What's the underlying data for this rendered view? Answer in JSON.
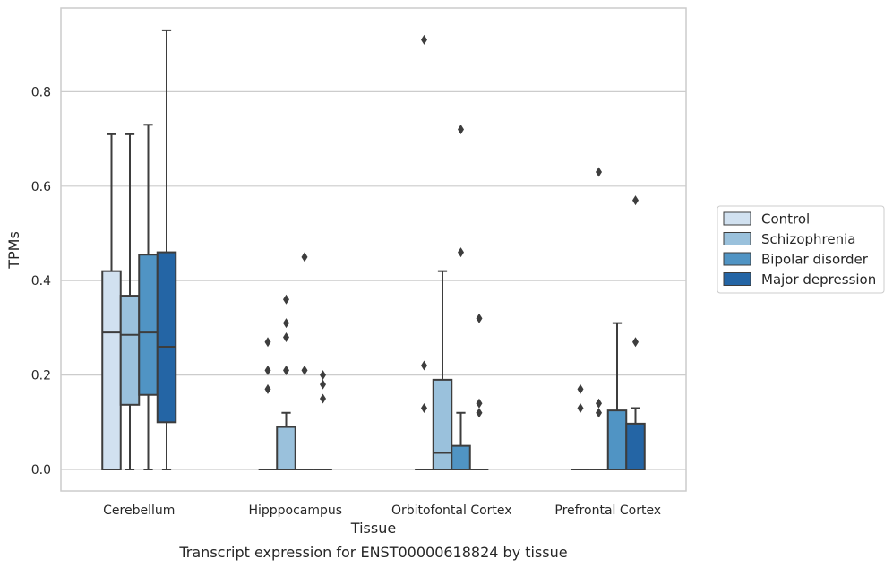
{
  "chart_data": {
    "type": "box",
    "title": "",
    "caption": "Transcript expression for ENST00000618824 by tissue",
    "xlabel": "Tissue",
    "ylabel": "TPMs",
    "ylim": [
      -0.045,
      0.98
    ],
    "yticks": [
      0.0,
      0.2,
      0.4,
      0.6,
      0.8
    ],
    "ytick_labels": [
      "0.0",
      "0.2",
      "0.4",
      "0.6",
      "0.8"
    ],
    "grid": "horizontal",
    "legend_position": "right",
    "categories": [
      "Cerebellum",
      "Hipppocampus",
      "Orbitofontal Cortex",
      "Prefrontal Cortex"
    ],
    "series": [
      {
        "name": "Control",
        "color": "#d1e1f0",
        "boxes": [
          {
            "q1": 0.0,
            "median": 0.29,
            "q3": 0.42,
            "whisker_low": 0.0,
            "whisker_high": 0.71,
            "outliers": []
          },
          {
            "q1": 0.0,
            "median": 0.0,
            "q3": 0.0,
            "whisker_low": 0.0,
            "whisker_high": 0.0,
            "outliers": [
              0.17,
              0.21,
              0.27
            ]
          },
          {
            "q1": 0.0,
            "median": 0.0,
            "q3": 0.0,
            "whisker_low": 0.0,
            "whisker_high": 0.0,
            "outliers": [
              0.13,
              0.22,
              0.91
            ]
          },
          {
            "q1": 0.0,
            "median": 0.0,
            "q3": 0.0,
            "whisker_low": 0.0,
            "whisker_high": 0.0,
            "outliers": [
              0.13,
              0.17
            ]
          }
        ]
      },
      {
        "name": "Schizophrenia",
        "color": "#9ac1dc",
        "boxes": [
          {
            "q1": 0.137,
            "median": 0.285,
            "q3": 0.368,
            "whisker_low": 0.0,
            "whisker_high": 0.71,
            "outliers": []
          },
          {
            "q1": 0.0,
            "median": 0.0,
            "q3": 0.09,
            "whisker_low": 0.0,
            "whisker_high": 0.12,
            "outliers": [
              0.21,
              0.28,
              0.31,
              0.36
            ]
          },
          {
            "q1": 0.0,
            "median": 0.035,
            "q3": 0.19,
            "whisker_low": 0.0,
            "whisker_high": 0.42,
            "outliers": []
          },
          {
            "q1": 0.0,
            "median": 0.0,
            "q3": 0.0,
            "whisker_low": 0.0,
            "whisker_high": 0.0,
            "outliers": [
              0.12,
              0.14,
              0.63
            ]
          }
        ]
      },
      {
        "name": "Bipolar disorder",
        "color": "#5094c4",
        "boxes": [
          {
            "q1": 0.158,
            "median": 0.29,
            "q3": 0.455,
            "whisker_low": 0.0,
            "whisker_high": 0.73,
            "outliers": []
          },
          {
            "q1": 0.0,
            "median": 0.0,
            "q3": 0.0,
            "whisker_low": 0.0,
            "whisker_high": 0.0,
            "outliers": [
              0.21,
              0.45
            ]
          },
          {
            "q1": 0.0,
            "median": 0.0,
            "q3": 0.05,
            "whisker_low": 0.0,
            "whisker_high": 0.12,
            "outliers": [
              0.46,
              0.72
            ]
          },
          {
            "q1": 0.0,
            "median": 0.0,
            "q3": 0.125,
            "whisker_low": 0.0,
            "whisker_high": 0.31,
            "outliers": []
          }
        ]
      },
      {
        "name": "Major depression",
        "color": "#2465a5",
        "boxes": [
          {
            "q1": 0.1,
            "median": 0.26,
            "q3": 0.46,
            "whisker_low": 0.0,
            "whisker_high": 0.93,
            "outliers": []
          },
          {
            "q1": 0.0,
            "median": 0.0,
            "q3": 0.0,
            "whisker_low": 0.0,
            "whisker_high": 0.0,
            "outliers": [
              0.15,
              0.18,
              0.2
            ]
          },
          {
            "q1": 0.0,
            "median": 0.0,
            "q3": 0.0,
            "whisker_low": 0.0,
            "whisker_high": 0.0,
            "outliers": [
              0.12,
              0.14,
              0.32
            ]
          },
          {
            "q1": 0.0,
            "median": 0.0,
            "q3": 0.097,
            "whisker_low": 0.0,
            "whisker_high": 0.13,
            "outliers": [
              0.27,
              0.57
            ]
          }
        ]
      }
    ]
  }
}
